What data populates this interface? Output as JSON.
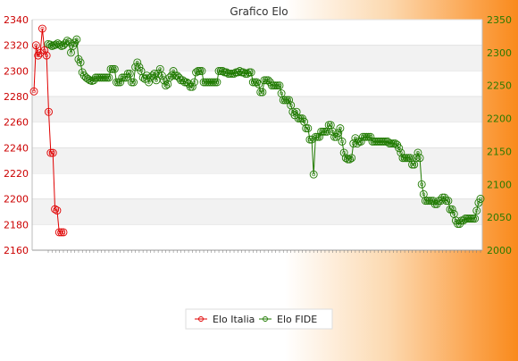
{
  "chart_data": {
    "type": "line",
    "title": "Grafico Elo",
    "left_axis": {
      "min": 2160,
      "max": 2340,
      "step": 20,
      "color": "#cc0000"
    },
    "right_axis": {
      "min": 2000,
      "max": 2350,
      "step": 50,
      "color": "#2a7a00"
    },
    "grid": "horizontal-bands",
    "legend_position": "bottom-center",
    "series": [
      {
        "name": "Elo Italia",
        "axis": "left",
        "color": "#e00000",
        "values": [
          2284,
          2320,
          2312,
          2314,
          2333,
          2316,
          2312,
          2268,
          2236,
          2236,
          2192,
          2191,
          2174,
          2174,
          2174
        ]
      },
      {
        "name": "Elo FIDE",
        "axis": "right",
        "color": "#1f7a00",
        "values": [
          2313,
          2312,
          2310,
          2311,
          2312,
          2314,
          2312,
          2310,
          2311,
          2314,
          2318,
          2316,
          2300,
          2310,
          2315,
          2320,
          2290,
          2285,
          2270,
          2265,
          2262,
          2260,
          2258,
          2257,
          2258,
          2262,
          2262,
          2262,
          2262,
          2262,
          2262,
          2262,
          2262,
          2275,
          2275,
          2275,
          2255,
          2255,
          2255,
          2262,
          2262,
          2262,
          2268,
          2268,
          2255,
          2255,
          2278,
          2285,
          2278,
          2272,
          2262,
          2260,
          2265,
          2255,
          2262,
          2265,
          2268,
          2258,
          2268,
          2275,
          2265,
          2258,
          2250,
          2252,
          2262,
          2265,
          2272,
          2265,
          2265,
          2262,
          2258,
          2258,
          2255,
          2255,
          2253,
          2248,
          2248,
          2255,
          2270,
          2272,
          2272,
          2272,
          2255,
          2255,
          2255,
          2255,
          2255,
          2255,
          2255,
          2255,
          2272,
          2272,
          2272,
          2270,
          2270,
          2268,
          2268,
          2268,
          2268,
          2270,
          2270,
          2272,
          2270,
          2270,
          2268,
          2268,
          2270,
          2270,
          2255,
          2255,
          2255,
          2252,
          2240,
          2240,
          2258,
          2258,
          2258,
          2255,
          2250,
          2250,
          2250,
          2250,
          2250,
          2238,
          2228,
          2228,
          2228,
          2228,
          2220,
          2210,
          2205,
          2210,
          2200,
          2200,
          2200,
          2195,
          2185,
          2185,
          2168,
          2168,
          2115,
          2172,
          2172,
          2172,
          2180,
          2180,
          2180,
          2180,
          2190,
          2190,
          2180,
          2172,
          2172,
          2178,
          2185,
          2165,
          2148,
          2140,
          2138,
          2138,
          2140,
          2162,
          2170,
          2162,
          2165,
          2165,
          2172,
          2172,
          2172,
          2172,
          2172,
          2165,
          2165,
          2165,
          2165,
          2165,
          2165,
          2165,
          2165,
          2165,
          2162,
          2162,
          2162,
          2162,
          2160,
          2155,
          2148,
          2140,
          2140,
          2140,
          2140,
          2140,
          2130,
          2130,
          2140,
          2148,
          2140,
          2100,
          2085,
          2075,
          2075,
          2075,
          2075,
          2075,
          2070,
          2070,
          2075,
          2075,
          2080,
          2080,
          2075,
          2075,
          2062,
          2062,
          2055,
          2045,
          2040,
          2040,
          2045,
          2045,
          2048,
          2048,
          2048,
          2048,
          2048,
          2048,
          2060,
          2072,
          2078
        ]
      }
    ]
  }
}
